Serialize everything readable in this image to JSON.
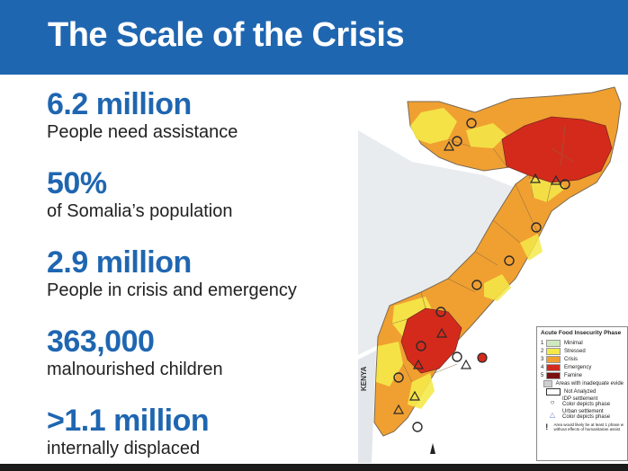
{
  "header": {
    "title": "The Scale of the Crisis"
  },
  "stats": [
    {
      "value": "6.2 million",
      "label": "People need assistance"
    },
    {
      "value": "50%",
      "label": "of Somalia’s population"
    },
    {
      "value": "2.9 million",
      "label": "People in crisis and emergency"
    },
    {
      "value": "363,000",
      "label": "malnourished children"
    },
    {
      "value": ">1.1 million",
      "label": "internally displaced"
    }
  ],
  "map": {
    "kenya_label": "KENYA",
    "legend": {
      "title": "Acute Food Insecurity Phase",
      "phases": [
        {
          "num": "1",
          "label": "Minimal",
          "color": "#cfe8c0"
        },
        {
          "num": "2",
          "label": "Stressed",
          "color": "#f5e94a"
        },
        {
          "num": "3",
          "label": "Crisis",
          "color": "#f0a030"
        },
        {
          "num": "4",
          "label": "Emergency",
          "color": "#d42a1c"
        },
        {
          "num": "5",
          "label": "Famine",
          "color": "#7a1010"
        }
      ],
      "inadequate": "Areas with inadequate evide",
      "not_analyzed": "Not Analyzed",
      "idp_line1": "IDP settlement",
      "idp_line2": "Color depicts phase",
      "urban_line1": "Urban settlement",
      "urban_line2": "Color depicts phase",
      "aid_line1": "Area would likely be at least 1 phase w",
      "aid_line2": "without effects of humanitarian assist"
    }
  },
  "colors": {
    "header": "#1f66b1",
    "stat_value": "#1f66b1",
    "crisis": "#f0a030",
    "stressed": "#f5e94a",
    "emergency": "#d42a1c"
  }
}
